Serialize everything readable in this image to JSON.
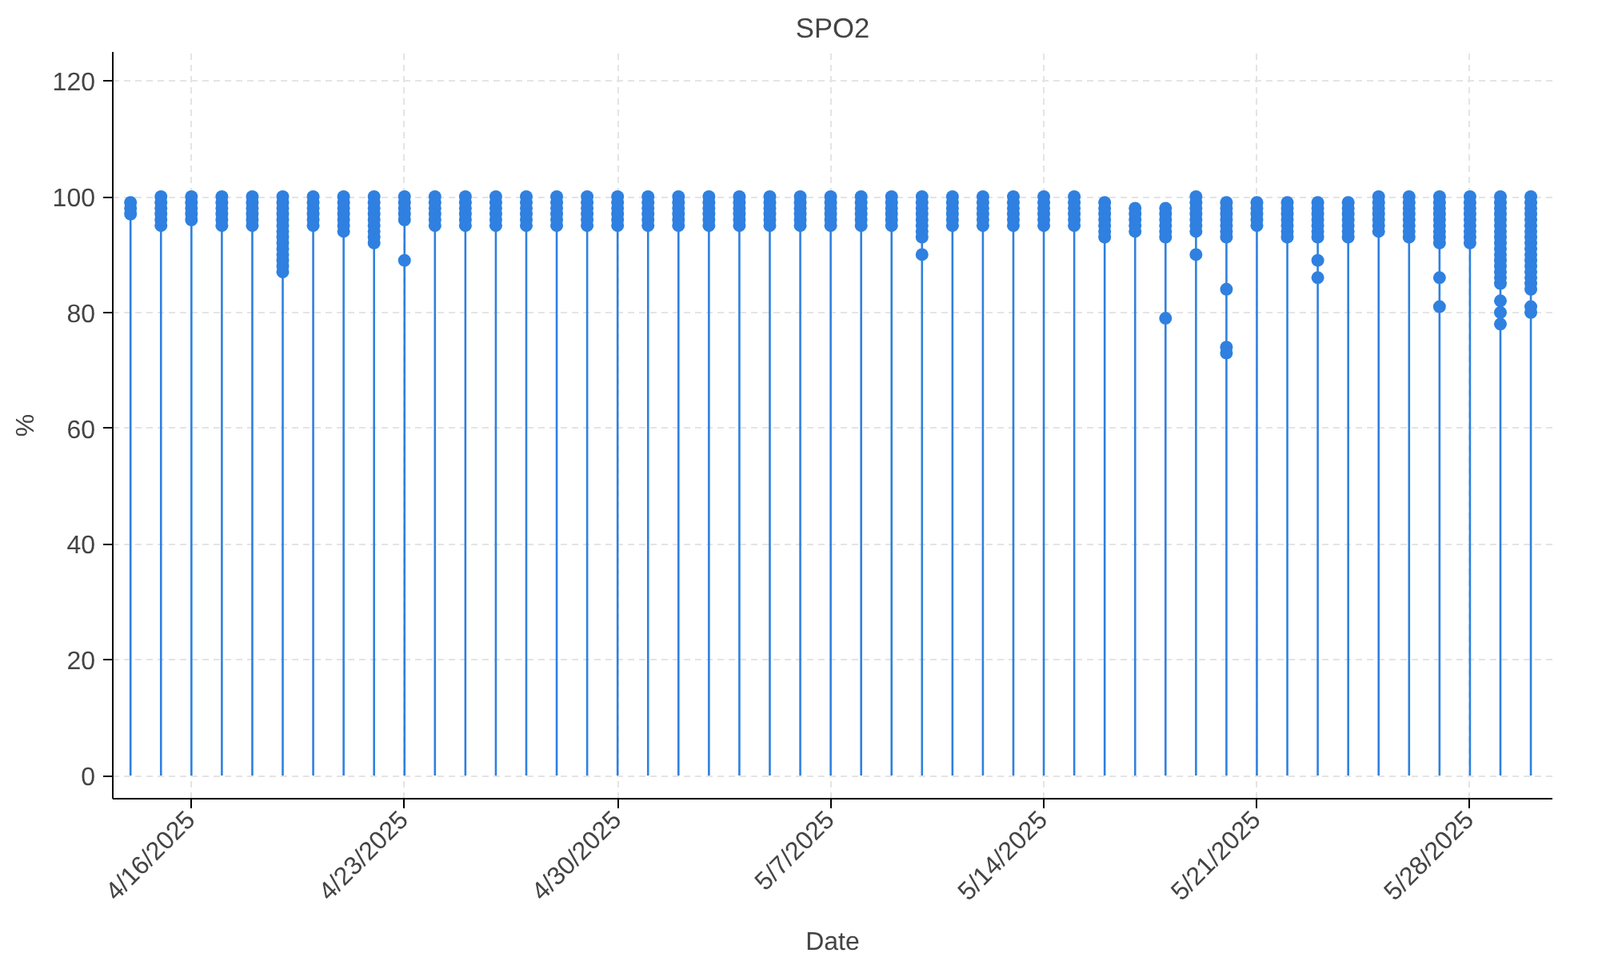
{
  "chart_data": {
    "type": "lollipop",
    "title": "SPO2",
    "xlabel": "Date",
    "ylabel": "%",
    "grid": true,
    "xlim": [
      "2025-04-13T10:00",
      "2025-05-30T17:00"
    ],
    "ylim": [
      -4,
      125
    ],
    "xticks": [
      {
        "value": "2025-04-16",
        "label": "4/16/2025"
      },
      {
        "value": "2025-04-23",
        "label": "4/23/2025"
      },
      {
        "value": "2025-04-30",
        "label": "4/30/2025"
      },
      {
        "value": "2025-05-07",
        "label": "5/7/2025"
      },
      {
        "value": "2025-05-14",
        "label": "5/14/2025"
      },
      {
        "value": "2025-05-21",
        "label": "5/21/2025"
      },
      {
        "value": "2025-05-28",
        "label": "5/28/2025"
      }
    ],
    "yticks": [
      0,
      20,
      40,
      60,
      80,
      100,
      120
    ],
    "series": [
      {
        "marker": "circle",
        "color": "#2f80e0",
        "x": [
          "2025-04-14",
          "2025-04-15",
          "2025-04-16",
          "2025-04-17",
          "2025-04-18",
          "2025-04-19",
          "2025-04-20",
          "2025-04-21",
          "2025-04-22",
          "2025-04-23",
          "2025-04-24",
          "2025-04-25",
          "2025-04-26",
          "2025-04-27",
          "2025-04-28",
          "2025-04-29",
          "2025-04-30",
          "2025-05-01",
          "2025-05-02",
          "2025-05-03",
          "2025-05-04",
          "2025-05-05",
          "2025-05-06",
          "2025-05-07",
          "2025-05-08",
          "2025-05-09",
          "2025-05-10",
          "2025-05-11",
          "2025-05-12",
          "2025-05-13",
          "2025-05-14",
          "2025-05-15",
          "2025-05-16",
          "2025-05-17",
          "2025-05-18",
          "2025-05-19",
          "2025-05-20",
          "2025-05-21",
          "2025-05-22",
          "2025-05-23",
          "2025-05-24",
          "2025-05-25",
          "2025-05-26",
          "2025-05-27",
          "2025-05-28",
          "2025-05-29",
          "2025-05-30"
        ],
        "values": [
          99,
          100,
          100,
          100,
          100,
          100,
          100,
          100,
          100,
          100,
          100,
          100,
          100,
          100,
          100,
          100,
          100,
          100,
          100,
          100,
          100,
          100,
          100,
          100,
          100,
          100,
          100,
          100,
          100,
          100,
          100,
          100,
          99,
          98,
          98,
          100,
          99,
          99,
          99,
          99,
          99,
          100,
          100,
          100,
          100,
          100,
          100
        ]
      },
      {
        "type": "scatter",
        "marker": "circle",
        "color": "#2f80e0",
        "x": [
          "2025-04-14",
          "2025-04-14",
          "2025-04-15",
          "2025-04-15",
          "2025-04-15",
          "2025-04-15",
          "2025-04-15",
          "2025-04-16",
          "2025-04-16",
          "2025-04-16",
          "2025-04-16",
          "2025-04-17",
          "2025-04-17",
          "2025-04-17",
          "2025-04-17",
          "2025-04-17",
          "2025-04-18",
          "2025-04-18",
          "2025-04-18",
          "2025-04-18",
          "2025-04-18",
          "2025-04-19",
          "2025-04-19",
          "2025-04-19",
          "2025-04-19",
          "2025-04-19",
          "2025-04-19",
          "2025-04-19",
          "2025-04-19",
          "2025-04-19",
          "2025-04-19",
          "2025-04-19",
          "2025-04-19",
          "2025-04-19",
          "2025-04-20",
          "2025-04-20",
          "2025-04-20",
          "2025-04-20",
          "2025-04-20",
          "2025-04-21",
          "2025-04-21",
          "2025-04-21",
          "2025-04-21",
          "2025-04-21",
          "2025-04-21",
          "2025-04-22",
          "2025-04-22",
          "2025-04-22",
          "2025-04-22",
          "2025-04-22",
          "2025-04-22",
          "2025-04-22",
          "2025-04-22",
          "2025-04-23",
          "2025-04-23",
          "2025-04-23",
          "2025-04-23",
          "2025-04-23",
          "2025-04-24",
          "2025-04-24",
          "2025-04-24",
          "2025-04-24",
          "2025-04-24",
          "2025-04-25",
          "2025-04-25",
          "2025-04-25",
          "2025-04-25",
          "2025-04-25",
          "2025-04-26",
          "2025-04-26",
          "2025-04-26",
          "2025-04-26",
          "2025-04-26",
          "2025-04-27",
          "2025-04-27",
          "2025-04-27",
          "2025-04-27",
          "2025-04-27",
          "2025-04-28",
          "2025-04-28",
          "2025-04-28",
          "2025-04-28",
          "2025-04-28",
          "2025-04-29",
          "2025-04-29",
          "2025-04-29",
          "2025-04-29",
          "2025-04-29",
          "2025-04-30",
          "2025-04-30",
          "2025-04-30",
          "2025-04-30",
          "2025-04-30",
          "2025-05-01",
          "2025-05-01",
          "2025-05-01",
          "2025-05-01",
          "2025-05-01",
          "2025-05-02",
          "2025-05-02",
          "2025-05-02",
          "2025-05-02",
          "2025-05-02",
          "2025-05-03",
          "2025-05-03",
          "2025-05-03",
          "2025-05-03",
          "2025-05-03",
          "2025-05-04",
          "2025-05-04",
          "2025-05-04",
          "2025-05-04",
          "2025-05-04",
          "2025-05-05",
          "2025-05-05",
          "2025-05-05",
          "2025-05-05",
          "2025-05-05",
          "2025-05-06",
          "2025-05-06",
          "2025-05-06",
          "2025-05-06",
          "2025-05-06",
          "2025-05-07",
          "2025-05-07",
          "2025-05-07",
          "2025-05-07",
          "2025-05-07",
          "2025-05-08",
          "2025-05-08",
          "2025-05-08",
          "2025-05-08",
          "2025-05-08",
          "2025-05-09",
          "2025-05-09",
          "2025-05-09",
          "2025-05-09",
          "2025-05-09",
          "2025-05-10",
          "2025-05-10",
          "2025-05-10",
          "2025-05-10",
          "2025-05-10",
          "2025-05-10",
          "2025-05-10",
          "2025-05-10",
          "2025-05-11",
          "2025-05-11",
          "2025-05-11",
          "2025-05-11",
          "2025-05-11",
          "2025-05-12",
          "2025-05-12",
          "2025-05-12",
          "2025-05-12",
          "2025-05-12",
          "2025-05-13",
          "2025-05-13",
          "2025-05-13",
          "2025-05-13",
          "2025-05-13",
          "2025-05-14",
          "2025-05-14",
          "2025-05-14",
          "2025-05-14",
          "2025-05-14",
          "2025-05-15",
          "2025-05-15",
          "2025-05-15",
          "2025-05-15",
          "2025-05-15",
          "2025-05-16",
          "2025-05-16",
          "2025-05-16",
          "2025-05-16",
          "2025-05-16",
          "2025-05-16",
          "2025-05-17",
          "2025-05-17",
          "2025-05-17",
          "2025-05-17",
          "2025-05-18",
          "2025-05-18",
          "2025-05-18",
          "2025-05-18",
          "2025-05-18",
          "2025-05-18",
          "2025-05-19",
          "2025-05-19",
          "2025-05-19",
          "2025-05-19",
          "2025-05-19",
          "2025-05-19",
          "2025-05-19",
          "2025-05-20",
          "2025-05-20",
          "2025-05-20",
          "2025-05-20",
          "2025-05-20",
          "2025-05-20",
          "2025-05-20",
          "2025-05-20",
          "2025-05-20",
          "2025-05-21",
          "2025-05-21",
          "2025-05-21",
          "2025-05-21",
          "2025-05-22",
          "2025-05-22",
          "2025-05-22",
          "2025-05-22",
          "2025-05-22",
          "2025-05-22",
          "2025-05-23",
          "2025-05-23",
          "2025-05-23",
          "2025-05-23",
          "2025-05-23",
          "2025-05-23",
          "2025-05-23",
          "2025-05-23",
          "2025-05-24",
          "2025-05-24",
          "2025-05-24",
          "2025-05-24",
          "2025-05-24",
          "2025-05-24",
          "2025-05-25",
          "2025-05-25",
          "2025-05-25",
          "2025-05-25",
          "2025-05-25",
          "2025-05-25",
          "2025-05-26",
          "2025-05-26",
          "2025-05-26",
          "2025-05-26",
          "2025-05-26",
          "2025-05-26",
          "2025-05-26",
          "2025-05-27",
          "2025-05-27",
          "2025-05-27",
          "2025-05-27",
          "2025-05-27",
          "2025-05-27",
          "2025-05-27",
          "2025-05-27",
          "2025-05-27",
          "2025-05-27",
          "2025-05-28",
          "2025-05-28",
          "2025-05-28",
          "2025-05-28",
          "2025-05-28",
          "2025-05-28",
          "2025-05-28",
          "2025-05-28",
          "2025-05-29",
          "2025-05-29",
          "2025-05-29",
          "2025-05-29",
          "2025-05-29",
          "2025-05-29",
          "2025-05-29",
          "2025-05-29",
          "2025-05-29",
          "2025-05-29",
          "2025-05-29",
          "2025-05-29",
          "2025-05-29",
          "2025-05-29",
          "2025-05-29",
          "2025-05-29",
          "2025-05-29",
          "2025-05-29",
          "2025-05-30",
          "2025-05-30",
          "2025-05-30",
          "2025-05-30",
          "2025-05-30",
          "2025-05-30",
          "2025-05-30",
          "2025-05-30",
          "2025-05-30",
          "2025-05-30",
          "2025-05-30",
          "2025-05-30",
          "2025-05-30",
          "2025-05-30",
          "2025-05-30",
          "2025-05-30",
          "2025-05-30",
          "2025-05-30"
        ],
        "values": [
          97,
          98,
          95,
          96,
          97,
          98,
          99,
          96,
          97,
          98,
          99,
          95,
          96,
          97,
          98,
          99,
          95,
          96,
          97,
          98,
          99,
          87,
          88,
          89,
          90,
          91,
          92,
          93,
          94,
          95,
          96,
          97,
          98,
          99,
          95,
          96,
          97,
          98,
          99,
          94,
          95,
          96,
          97,
          98,
          99,
          92,
          93,
          94,
          95,
          96,
          97,
          98,
          99,
          96,
          97,
          98,
          99,
          89,
          95,
          96,
          97,
          98,
          99,
          95,
          96,
          97,
          98,
          99,
          95,
          96,
          97,
          98,
          99,
          95,
          96,
          97,
          98,
          99,
          95,
          96,
          97,
          98,
          99,
          95,
          96,
          97,
          98,
          99,
          95,
          96,
          97,
          98,
          99,
          95,
          96,
          97,
          98,
          99,
          95,
          96,
          97,
          98,
          99,
          95,
          96,
          97,
          98,
          99,
          95,
          96,
          97,
          98,
          99,
          95,
          96,
          97,
          98,
          99,
          95,
          96,
          97,
          98,
          99,
          95,
          96,
          97,
          98,
          99,
          95,
          96,
          97,
          98,
          99,
          95,
          96,
          97,
          98,
          99,
          93,
          94,
          95,
          96,
          97,
          98,
          99,
          90,
          95,
          96,
          97,
          98,
          99,
          95,
          96,
          97,
          98,
          99,
          95,
          96,
          97,
          98,
          99,
          95,
          96,
          97,
          98,
          99,
          95,
          96,
          97,
          98,
          99,
          93,
          94,
          95,
          96,
          97,
          98,
          94,
          95,
          96,
          97,
          93,
          94,
          95,
          96,
          97,
          79,
          94,
          95,
          96,
          97,
          98,
          99,
          90,
          93,
          94,
          95,
          96,
          97,
          98,
          84,
          74,
          73,
          95,
          96,
          97,
          98,
          93,
          94,
          95,
          96,
          97,
          98,
          93,
          94,
          95,
          96,
          97,
          98,
          89,
          86,
          93,
          94,
          95,
          96,
          97,
          98,
          94,
          95,
          96,
          97,
          98,
          99,
          93,
          94,
          95,
          96,
          97,
          98,
          99,
          92,
          93,
          94,
          95,
          96,
          97,
          98,
          99,
          86,
          81,
          92,
          93,
          94,
          95,
          96,
          97,
          98,
          99,
          85,
          86,
          87,
          88,
          89,
          90,
          91,
          92,
          93,
          94,
          95,
          96,
          97,
          98,
          99,
          82,
          80,
          78,
          84,
          85,
          86,
          87,
          88,
          89,
          90,
          91,
          92,
          93,
          94,
          95,
          96,
          97,
          98,
          99,
          81,
          80
        ]
      }
    ]
  }
}
